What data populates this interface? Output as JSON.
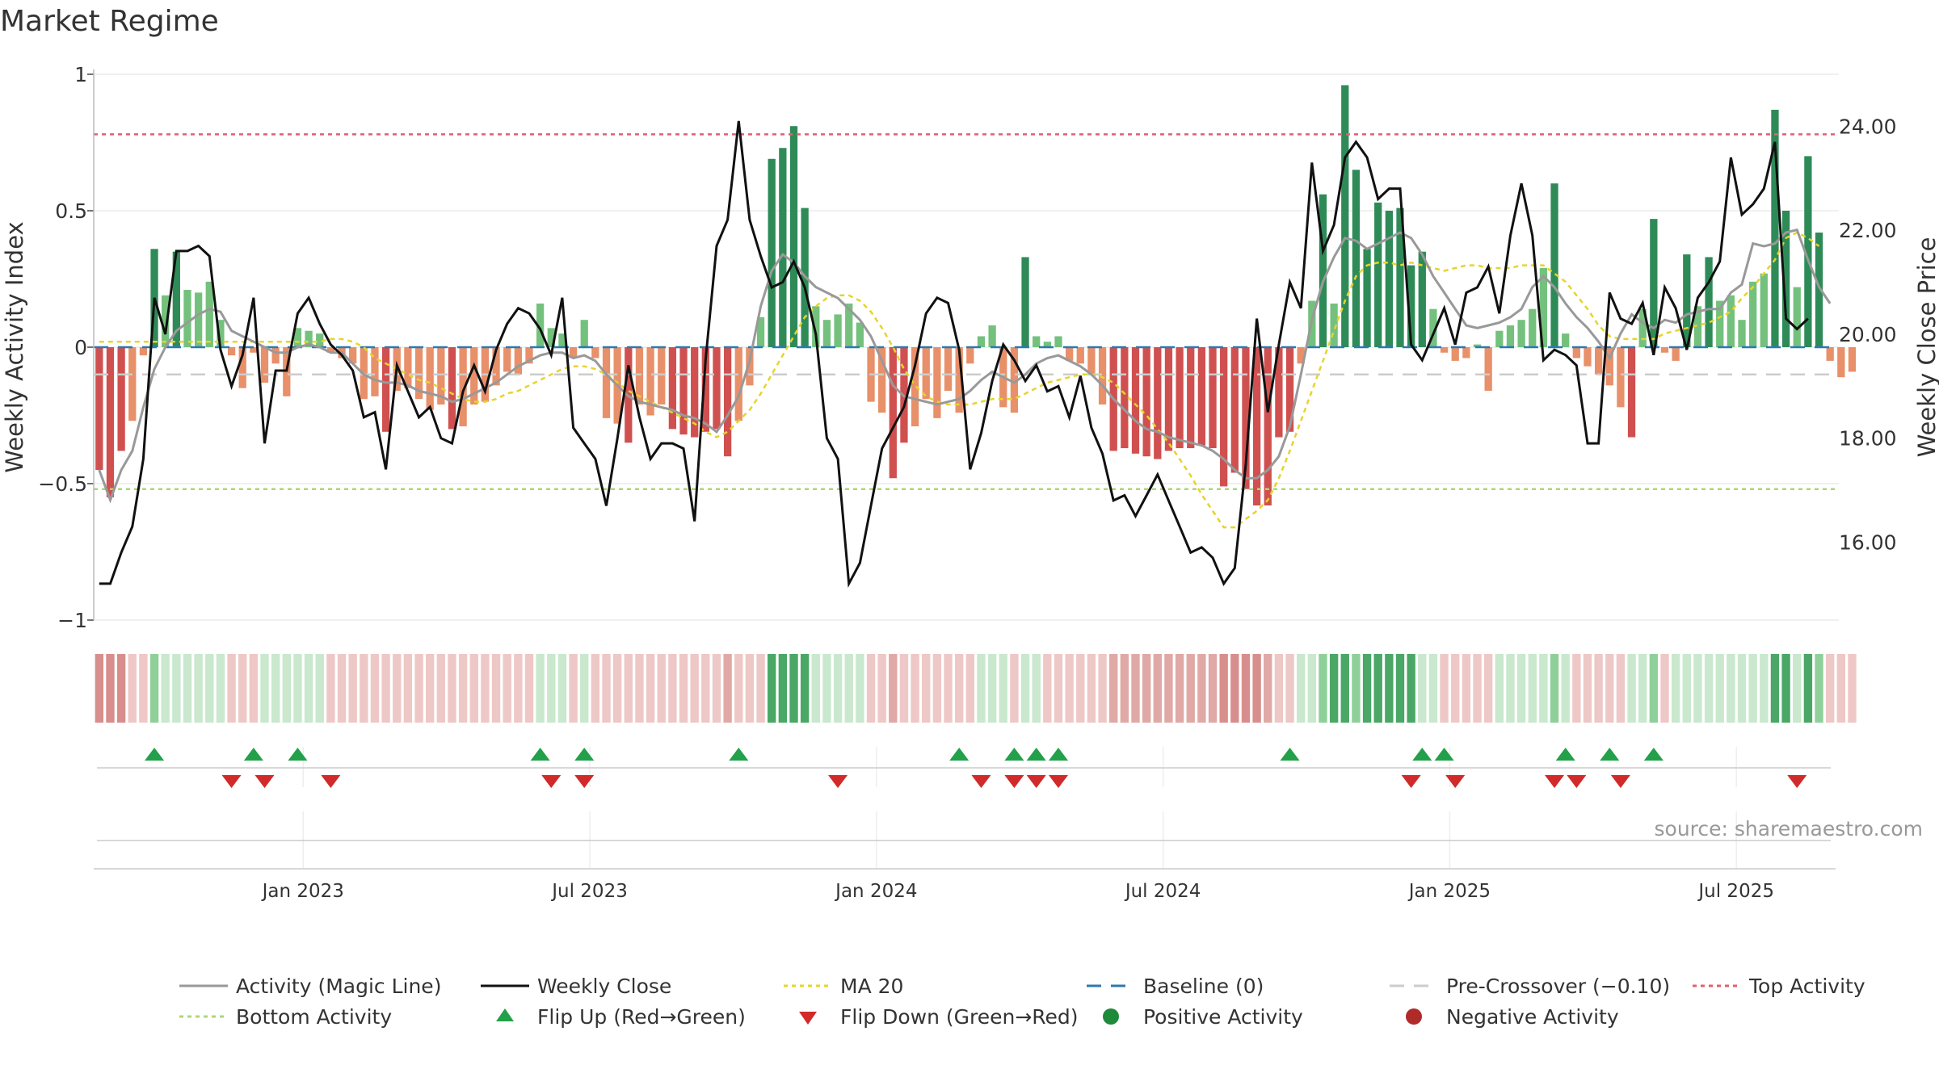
{
  "title": "Market Regime",
  "source": "source: sharemaestro.com",
  "colors": {
    "pos_strong": "#2e8b57",
    "pos_light": "#74c17d",
    "neg_strong": "#d05050",
    "neg_light": "#e8906a",
    "close": "#111111",
    "magic": "#999999",
    "ma20": "#e6d42c",
    "baseline": "#2a7ab0",
    "precross": "#cccccc",
    "top": "#e06070",
    "bottom": "#a8d878",
    "flip_up": "#22a04a",
    "flip_down": "#d02a2a"
  },
  "chart_data": {
    "type": "bar",
    "title": "Market Regime",
    "ylabel": "Weekly Activity Index",
    "y2label": "Weekly Close Price",
    "ylim": [
      -1,
      1
    ],
    "y2lim": [
      14.5,
      25.0
    ],
    "yticks": [
      {
        "v": 1,
        "label": "1"
      },
      {
        "v": 0.5,
        "label": "0.5"
      },
      {
        "v": 0,
        "label": "0"
      },
      {
        "v": -0.5,
        "label": "−0.5"
      },
      {
        "v": -1,
        "label": "−1"
      }
    ],
    "y2ticks": [
      {
        "v": 24,
        "label": "24.00"
      },
      {
        "v": 22,
        "label": "22.00"
      },
      {
        "v": 20,
        "label": "20.00"
      },
      {
        "v": 18,
        "label": "18.00"
      },
      {
        "v": 16,
        "label": "16.00"
      }
    ],
    "xticks": [
      {
        "week": 19,
        "label": "Jan 2023"
      },
      {
        "week": 45,
        "label": "Jul 2023"
      },
      {
        "week": 71,
        "label": "Jan 2024"
      },
      {
        "week": 97,
        "label": "Jul 2024"
      },
      {
        "week": 123,
        "label": "Jan 2025"
      },
      {
        "week": 149,
        "label": "Jul 2025"
      }
    ],
    "x_weeks": 158,
    "reference_lines": {
      "baseline": 0,
      "pre_crossover": -0.1,
      "top_activity": 0.78,
      "bottom_activity": -0.52
    },
    "activity": [
      -0.45,
      -0.55,
      -0.38,
      -0.27,
      -0.03,
      0.36,
      0.19,
      0.35,
      0.21,
      0.2,
      0.24,
      0.1,
      -0.03,
      -0.15,
      -0.02,
      -0.13,
      -0.06,
      -0.18,
      0.07,
      0.06,
      0.05,
      -0.02,
      -0.04,
      -0.06,
      -0.19,
      -0.18,
      -0.31,
      -0.16,
      -0.15,
      -0.19,
      -0.23,
      -0.21,
      -0.3,
      -0.29,
      -0.21,
      -0.2,
      -0.14,
      -0.09,
      -0.1,
      -0.06,
      0.16,
      0.07,
      0.05,
      -0.04,
      0.1,
      -0.04,
      -0.26,
      -0.28,
      -0.35,
      -0.21,
      -0.25,
      -0.21,
      -0.3,
      -0.32,
      -0.33,
      -0.31,
      -0.3,
      -0.4,
      -0.27,
      -0.14,
      0.11,
      0.69,
      0.73,
      0.81,
      0.51,
      0.15,
      0.1,
      0.12,
      0.16,
      0.09,
      -0.2,
      -0.24,
      -0.48,
      -0.35,
      -0.29,
      -0.19,
      -0.26,
      -0.16,
      -0.24,
      -0.06,
      0.04,
      0.08,
      -0.22,
      -0.24,
      0.33,
      0.04,
      0.02,
      0.04,
      -0.05,
      -0.06,
      -0.1,
      -0.21,
      -0.38,
      -0.37,
      -0.39,
      -0.4,
      -0.41,
      -0.38,
      -0.37,
      -0.37,
      -0.36,
      -0.37,
      -0.51,
      -0.46,
      -0.52,
      -0.58,
      -0.58,
      -0.33,
      -0.31,
      -0.06,
      0.17,
      0.56,
      0.16,
      0.96,
      0.65,
      0.36,
      0.53,
      0.5,
      0.51,
      0.3,
      0.35,
      0.14,
      -0.02,
      -0.05,
      -0.04,
      0.01,
      -0.16,
      0.06,
      0.08,
      0.1,
      0.14,
      0.29,
      0.6,
      0.05,
      -0.04,
      -0.07,
      -0.1,
      -0.14,
      -0.22,
      -0.33,
      0.14,
      0.47,
      -0.02,
      -0.05,
      0.34,
      0.15,
      0.33,
      0.17,
      0.19,
      0.1,
      0.24,
      0.27,
      0.87,
      0.5,
      0.22,
      0.7,
      0.42,
      -0.05,
      -0.11,
      -0.09
    ],
    "close": [
      15.2,
      15.2,
      15.8,
      16.3,
      17.6,
      20.7,
      20.0,
      21.6,
      21.6,
      21.7,
      21.5,
      19.7,
      19.0,
      19.6,
      20.7,
      17.9,
      19.3,
      19.3,
      20.4,
      20.7,
      20.2,
      19.8,
      19.6,
      19.3,
      18.4,
      18.5,
      17.4,
      19.4,
      18.9,
      18.4,
      18.6,
      18.0,
      17.9,
      18.9,
      19.4,
      18.9,
      19.7,
      20.2,
      20.5,
      20.4,
      20.1,
      19.6,
      20.7,
      18.2,
      17.9,
      17.6,
      16.7,
      18.0,
      19.4,
      18.4,
      17.6,
      17.9,
      17.9,
      17.8,
      16.4,
      19.5,
      21.7,
      22.2,
      24.1,
      22.2,
      21.5,
      20.9,
      21.0,
      21.4,
      20.9,
      20.0,
      18.0,
      17.6,
      15.2,
      15.6,
      16.7,
      17.8,
      18.2,
      18.6,
      19.4,
      20.4,
      20.7,
      20.6,
      19.7,
      17.4,
      18.1,
      19.1,
      19.8,
      19.5,
      19.1,
      19.4,
      18.9,
      19.0,
      18.4,
      19.2,
      18.2,
      17.7,
      16.8,
      16.9,
      16.5,
      16.9,
      17.3,
      16.8,
      16.3,
      15.8,
      15.9,
      15.7,
      15.2,
      15.5,
      17.5,
      20.3,
      18.5,
      19.8,
      21.0,
      20.5,
      23.3,
      21.6,
      22.1,
      23.4,
      23.7,
      23.4,
      22.6,
      22.8,
      22.8,
      19.8,
      19.5,
      20.0,
      20.5,
      19.8,
      20.8,
      20.9,
      21.3,
      20.4,
      21.9,
      22.9,
      21.9,
      19.5,
      19.7,
      19.6,
      19.4,
      17.9,
      17.9,
      20.8,
      20.3,
      20.2,
      20.6,
      19.6,
      20.9,
      20.5,
      19.7,
      20.7,
      21.0,
      21.4,
      23.4,
      22.3,
      22.5,
      22.8,
      23.7,
      20.3,
      20.1,
      20.3
    ],
    "magic": [
      -0.45,
      -0.56,
      -0.45,
      -0.38,
      -0.22,
      -0.08,
      0.0,
      0.06,
      0.09,
      0.12,
      0.14,
      0.13,
      0.06,
      0.04,
      0.02,
      0.0,
      -0.02,
      -0.02,
      0.0,
      0.01,
      0.0,
      -0.02,
      -0.02,
      -0.06,
      -0.1,
      -0.12,
      -0.13,
      -0.13,
      -0.14,
      -0.16,
      -0.17,
      -0.18,
      -0.2,
      -0.19,
      -0.17,
      -0.15,
      -0.13,
      -0.1,
      -0.07,
      -0.05,
      -0.03,
      -0.02,
      -0.02,
      -0.04,
      -0.03,
      -0.05,
      -0.1,
      -0.14,
      -0.18,
      -0.2,
      -0.21,
      -0.22,
      -0.23,
      -0.25,
      -0.26,
      -0.28,
      -0.31,
      -0.25,
      -0.18,
      -0.05,
      0.15,
      0.28,
      0.34,
      0.31,
      0.26,
      0.22,
      0.2,
      0.18,
      0.14,
      0.1,
      0.04,
      -0.05,
      -0.14,
      -0.18,
      -0.19,
      -0.2,
      -0.21,
      -0.2,
      -0.19,
      -0.16,
      -0.12,
      -0.09,
      -0.11,
      -0.13,
      -0.1,
      -0.06,
      -0.04,
      -0.03,
      -0.05,
      -0.07,
      -0.1,
      -0.14,
      -0.19,
      -0.23,
      -0.27,
      -0.3,
      -0.31,
      -0.33,
      -0.34,
      -0.35,
      -0.36,
      -0.38,
      -0.41,
      -0.45,
      -0.48,
      -0.48,
      -0.45,
      -0.4,
      -0.29,
      -0.1,
      0.1,
      0.24,
      0.33,
      0.4,
      0.39,
      0.36,
      0.38,
      0.4,
      0.42,
      0.4,
      0.34,
      0.26,
      0.2,
      0.14,
      0.08,
      0.07,
      0.08,
      0.09,
      0.11,
      0.14,
      0.22,
      0.26,
      0.22,
      0.16,
      0.11,
      0.07,
      0.02,
      -0.04,
      0.05,
      0.12,
      0.09,
      0.07,
      0.1,
      0.09,
      0.12,
      0.13,
      0.14,
      0.14,
      0.2,
      0.23,
      0.38,
      0.37,
      0.38,
      0.42,
      0.43,
      0.32,
      0.22,
      0.16
    ],
    "ma20": [
      0.02,
      0.02,
      0.02,
      0.02,
      0.02,
      0.02,
      0.02,
      0.02,
      0.02,
      0.02,
      0.02,
      0.02,
      0.02,
      0.02,
      0.02,
      0.02,
      0.02,
      0.02,
      0.02,
      0.02,
      0.02,
      0.03,
      0.03,
      0.02,
      0.0,
      -0.04,
      -0.06,
      -0.08,
      -0.1,
      -0.12,
      -0.13,
      -0.15,
      -0.17,
      -0.19,
      -0.2,
      -0.2,
      -0.19,
      -0.17,
      -0.16,
      -0.14,
      -0.12,
      -0.1,
      -0.08,
      -0.07,
      -0.07,
      -0.08,
      -0.1,
      -0.13,
      -0.16,
      -0.18,
      -0.2,
      -0.22,
      -0.24,
      -0.26,
      -0.28,
      -0.31,
      -0.33,
      -0.31,
      -0.27,
      -0.23,
      -0.17,
      -0.1,
      -0.03,
      0.04,
      0.11,
      0.15,
      0.18,
      0.19,
      0.19,
      0.17,
      0.13,
      0.07,
      0.0,
      -0.08,
      -0.14,
      -0.18,
      -0.2,
      -0.21,
      -0.21,
      -0.21,
      -0.2,
      -0.19,
      -0.19,
      -0.19,
      -0.17,
      -0.15,
      -0.13,
      -0.12,
      -0.11,
      -0.1,
      -0.1,
      -0.11,
      -0.13,
      -0.17,
      -0.21,
      -0.25,
      -0.3,
      -0.35,
      -0.41,
      -0.47,
      -0.54,
      -0.6,
      -0.66,
      -0.66,
      -0.63,
      -0.6,
      -0.56,
      -0.48,
      -0.38,
      -0.27,
      -0.16,
      -0.05,
      0.06,
      0.17,
      0.26,
      0.3,
      0.31,
      0.31,
      0.3,
      0.31,
      0.3,
      0.29,
      0.28,
      0.29,
      0.3,
      0.3,
      0.29,
      0.29,
      0.29,
      0.3,
      0.3,
      0.3,
      0.27,
      0.24,
      0.19,
      0.14,
      0.08,
      0.04,
      0.03,
      0.03,
      0.03,
      0.03,
      0.05,
      0.06,
      0.07,
      0.08,
      0.09,
      0.11,
      0.13,
      0.18,
      0.22,
      0.27,
      0.32,
      0.4,
      0.42,
      0.4,
      0.37
    ],
    "flip_up_weeks": [
      5,
      14,
      18,
      40,
      44,
      58,
      78,
      83,
      85,
      87,
      108,
      120,
      122,
      133,
      137,
      141
    ],
    "flip_down_weeks": [
      12,
      15,
      21,
      41,
      44,
      67,
      80,
      83,
      85,
      87,
      119,
      123,
      132,
      134,
      138,
      154
    ],
    "regime_strip": [
      -2,
      -2,
      -2,
      -1,
      -1,
      1,
      1,
      1,
      1,
      1,
      1,
      1,
      -1,
      -1,
      -1,
      1,
      1,
      1,
      1,
      1,
      1,
      -1,
      -1,
      -1,
      -1,
      -1,
      -1,
      -1,
      -1,
      -1,
      -1,
      -1,
      -1,
      -1,
      -1,
      -1,
      -1,
      -1,
      -1,
      -1,
      1,
      1,
      1,
      -1,
      1,
      -1,
      -1,
      -1,
      -1,
      -1,
      -1,
      -1,
      -1,
      -1,
      -1,
      -1,
      -1,
      -1,
      -1,
      -1,
      -1,
      2,
      2,
      2,
      2,
      1,
      1,
      1,
      1,
      1,
      -1,
      -1,
      -1,
      -1,
      -1,
      -1,
      -1,
      -1,
      -1,
      -1,
      1,
      1,
      1,
      -1,
      1,
      1,
      -1,
      -1,
      -1,
      -1,
      -1,
      -1,
      -1,
      -1,
      -1,
      -1,
      -1,
      -1,
      -1,
      -1,
      -1,
      -1,
      -2,
      -2,
      -2,
      -2,
      -1,
      -1,
      -1,
      1,
      1,
      1,
      2,
      2,
      1,
      2,
      2,
      2,
      2,
      2,
      1,
      1,
      -1,
      -1,
      -1,
      -1,
      -1,
      1,
      1,
      1,
      1,
      1,
      1,
      1,
      -1,
      -1,
      -1,
      -1,
      -1,
      1,
      1,
      1,
      -1,
      1,
      1,
      1,
      1,
      1,
      1,
      1,
      1,
      1,
      2,
      2,
      1,
      2,
      1,
      -1,
      -1,
      -1
    ],
    "legend": [
      {
        "key": "magic",
        "label": "Activity (Magic Line)"
      },
      {
        "key": "close",
        "label": "Weekly Close"
      },
      {
        "key": "ma20",
        "label": "MA 20"
      },
      {
        "key": "baseline",
        "label": "Baseline (0)"
      },
      {
        "key": "precross",
        "label": "Pre-Crossover (−0.10)"
      },
      {
        "key": "top",
        "label": "Top Activity"
      },
      {
        "key": "bottom",
        "label": "Bottom Activity"
      },
      {
        "key": "flipup",
        "label": "Flip Up (Red→Green)"
      },
      {
        "key": "flipdown",
        "label": "Flip Down (Green→Red)"
      },
      {
        "key": "pos",
        "label": "Positive Activity"
      },
      {
        "key": "neg",
        "label": "Negative Activity"
      }
    ]
  }
}
